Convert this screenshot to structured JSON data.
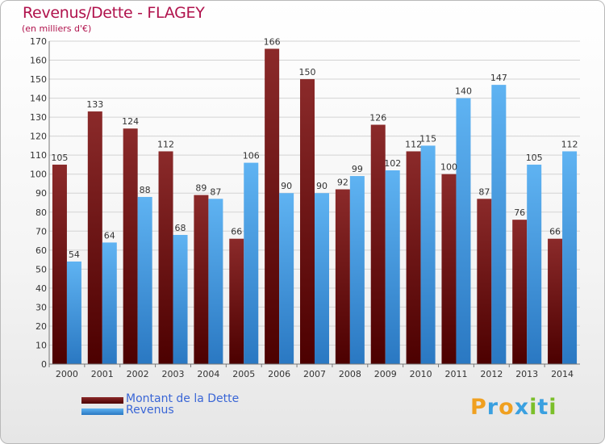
{
  "title": "Revenus/Dette - FLAGEY",
  "subtitle": "(en milliers d'€)",
  "colors": {
    "dette": "#8b1c1c",
    "dette_dark": "#4c0000",
    "revenus": "#5aaef0",
    "revenus_dark": "#2a78c2",
    "title": "#b0124c"
  },
  "chart_data": {
    "type": "bar",
    "categories": [
      "2000",
      "2001",
      "2002",
      "2003",
      "2004",
      "2005",
      "2006",
      "2007",
      "2008",
      "2009",
      "2010",
      "2011",
      "2012",
      "2013",
      "2014"
    ],
    "series": [
      {
        "name": "Montant de la Dette",
        "values": [
          105,
          133,
          124,
          112,
          89,
          66,
          166,
          150,
          92,
          126,
          112,
          100,
          87,
          76,
          66
        ]
      },
      {
        "name": "Revenus",
        "values": [
          54,
          64,
          88,
          68,
          87,
          106,
          90,
          90,
          99,
          102,
          115,
          140,
          147,
          105,
          112
        ]
      }
    ],
    "ylim": [
      0,
      170
    ],
    "ytick_step": 10,
    "grid": true,
    "legend_position": "bottom-left"
  },
  "legend": [
    {
      "label": "Montant de la Dette"
    },
    {
      "label": "Revenus"
    }
  ],
  "logo": {
    "letters": [
      "P",
      "r",
      "o",
      "x",
      "i",
      "t",
      "i"
    ],
    "letter_colors": [
      "#f0a020",
      "#3aa0e0",
      "#f0a020",
      "#3aa0e0",
      "#7bbf2a",
      "#3aa0e0",
      "#7bbf2a"
    ]
  }
}
